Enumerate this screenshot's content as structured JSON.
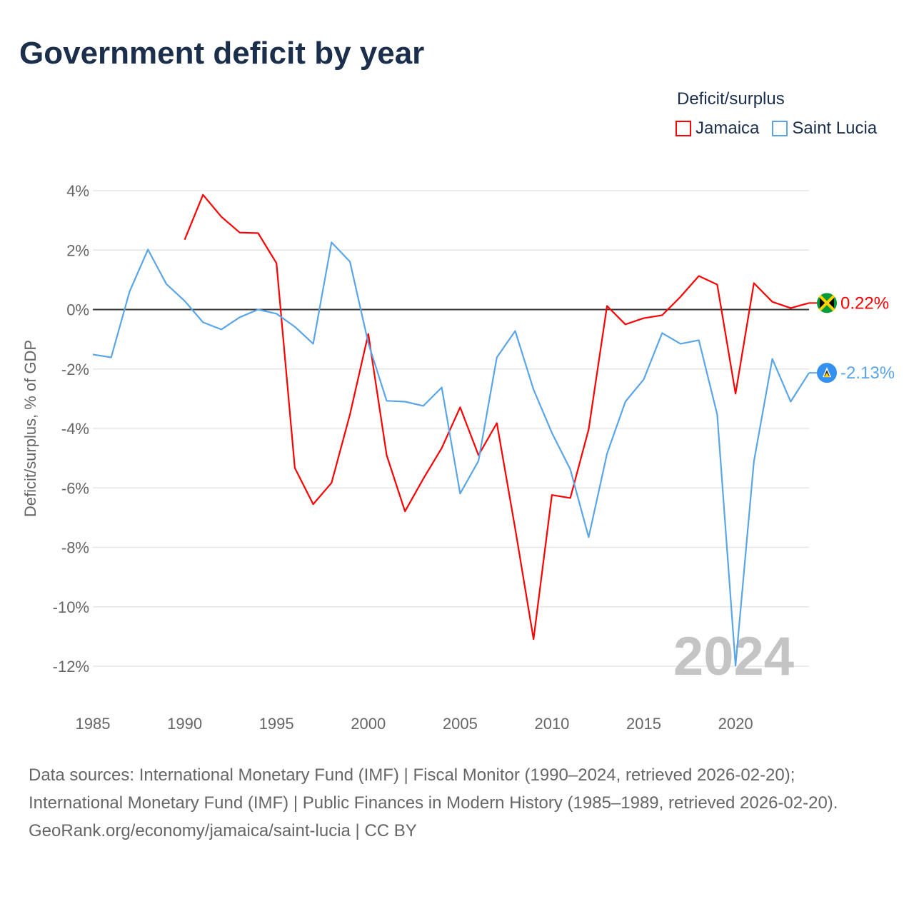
{
  "title": "Government deficit by year",
  "legend": {
    "title": "Deficit/surplus",
    "items": [
      "Jamaica",
      "Saint Lucia"
    ]
  },
  "footer": {
    "sources": "Data sources: International Monetary Fund (IMF) | Fiscal Monitor (1990–2024, retrieved 2026-02-20); International Monetary Fund (IMF) | Public Finances in Modern History (1985–1989, retrieved 2026-02-20).",
    "credit": "GeoRank.org/economy/jamaica/saint-lucia | CC BY"
  },
  "chart_data": {
    "type": "line",
    "title": "Government deficit by year",
    "xlabel": "",
    "ylabel": "Deficit/surplus, % of GDP",
    "xlim": [
      1985,
      2024
    ],
    "ylim": [
      -12,
      4
    ],
    "x_ticks": [
      1985,
      1990,
      1995,
      2000,
      2005,
      2010,
      2015,
      2020
    ],
    "y_ticks": [
      4,
      2,
      0,
      -2,
      -4,
      -6,
      -8,
      -10,
      -12
    ],
    "y_tick_labels": [
      "4%",
      "2%",
      "0%",
      "-2%",
      "-4%",
      "-6%",
      "-8%",
      "-10%",
      "-12%"
    ],
    "watermark_year": "2024",
    "legend_position": "top-right",
    "series": [
      {
        "name": "Jamaica",
        "color": "#ff0000",
        "end_label": "0.22%",
        "start_year": 1990,
        "values": [
          2.35,
          3.86,
          3.12,
          2.59,
          2.57,
          1.56,
          -5.33,
          -6.55,
          -5.83,
          -3.53,
          -0.82,
          -4.9,
          -6.79,
          -5.69,
          -4.66,
          -3.29,
          -4.9,
          -3.82,
          -7.37,
          -11.09,
          -6.24,
          -6.34,
          -4.03,
          0.12,
          -0.5,
          -0.29,
          -0.19,
          0.43,
          1.13,
          0.84,
          -2.83,
          0.89,
          0.26,
          0.05,
          0.22
        ]
      },
      {
        "name": "Saint Lucia",
        "color": "#5aa5e8",
        "end_label": "-2.13%",
        "start_year": 1985,
        "values": [
          -1.51,
          -1.61,
          0.6,
          2.02,
          0.86,
          0.29,
          -0.43,
          -0.67,
          -0.26,
          0.0,
          -0.14,
          -0.58,
          -1.15,
          2.26,
          1.61,
          -1.13,
          -3.07,
          -3.1,
          -3.24,
          -2.62,
          -6.19,
          -5.09,
          -1.61,
          -0.72,
          -2.69,
          -4.15,
          -5.38,
          -7.66,
          -4.85,
          -3.1,
          -2.35,
          -0.79,
          -1.15,
          -1.03,
          -3.53,
          -11.98,
          -5.11,
          -1.66,
          -3.1,
          -2.13
        ]
      }
    ]
  }
}
